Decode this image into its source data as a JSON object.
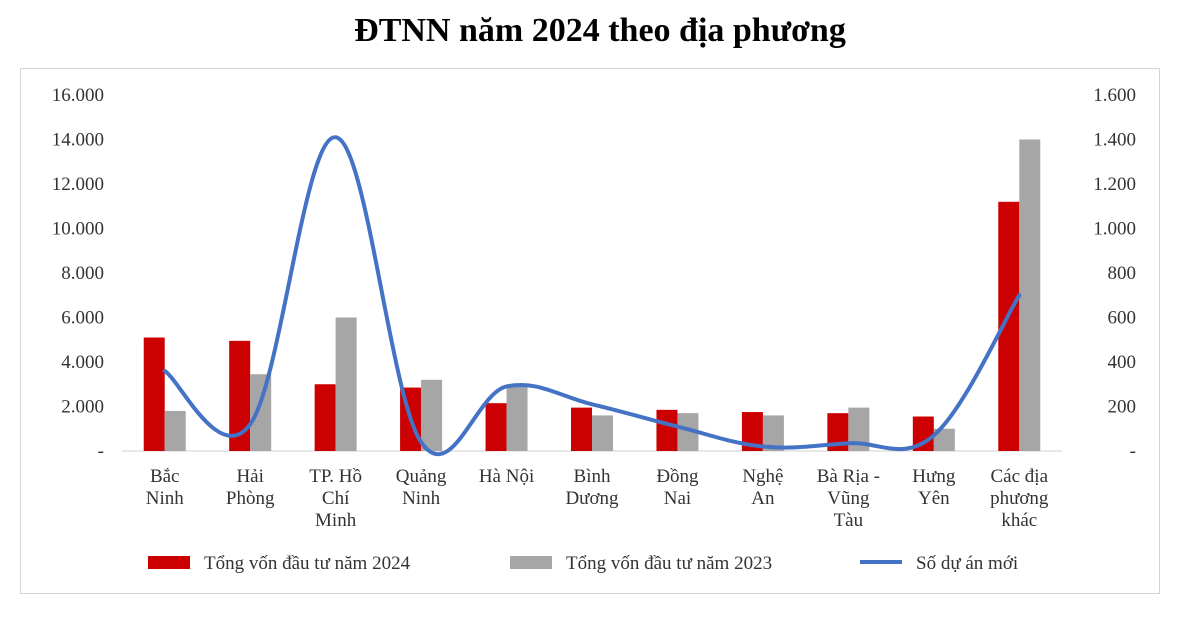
{
  "chart_data": {
    "type": "bar",
    "title": "ĐTNN năm 2024 theo địa phương",
    "categories": [
      [
        "Bắc",
        "Ninh"
      ],
      [
        "Hải",
        "Phòng"
      ],
      [
        "TP. Hồ",
        "Chí",
        "Minh"
      ],
      [
        "Quảng",
        "Ninh"
      ],
      [
        "Hà Nội"
      ],
      [
        "Bình",
        "Dương"
      ],
      [
        "Đồng",
        "Nai"
      ],
      [
        "Nghệ",
        "An"
      ],
      [
        "Bà Rịa -",
        "Vũng",
        "Tàu"
      ],
      [
        "Hưng",
        "Yên"
      ],
      [
        "Các địa",
        "phương",
        "khác"
      ]
    ],
    "series": [
      {
        "name": "Tổng vốn đầu tư năm 2024",
        "type": "bar",
        "axis": "left",
        "color": "#cc0000",
        "values": [
          5100,
          4950,
          3000,
          2850,
          2150,
          1950,
          1850,
          1750,
          1700,
          1550,
          11200
        ]
      },
      {
        "name": "Tổng vốn đầu tư năm 2023",
        "type": "bar",
        "axis": "left",
        "color": "#a6a6a6",
        "values": [
          1800,
          3450,
          6000,
          3200,
          2900,
          1600,
          1700,
          1600,
          1950,
          1000,
          14000
        ]
      },
      {
        "name": "Số dự án mới",
        "type": "line",
        "axis": "right",
        "color": "#4472c4",
        "values": [
          360,
          120,
          1410,
          40,
          290,
          210,
          110,
          20,
          35,
          70,
          700
        ]
      }
    ],
    "y_left": {
      "min": 0,
      "max": 16000,
      "ticks": [
        "-",
        "2.000",
        "4.000",
        "6.000",
        "8.000",
        "10.000",
        "12.000",
        "14.000",
        "16.000"
      ]
    },
    "y_right": {
      "min": 0,
      "max": 1600,
      "ticks": [
        "-",
        "200",
        "400",
        "600",
        "800",
        "1.000",
        "1.200",
        "1.400",
        "1.600"
      ]
    },
    "grid": false,
    "legend_position": "bottom"
  }
}
